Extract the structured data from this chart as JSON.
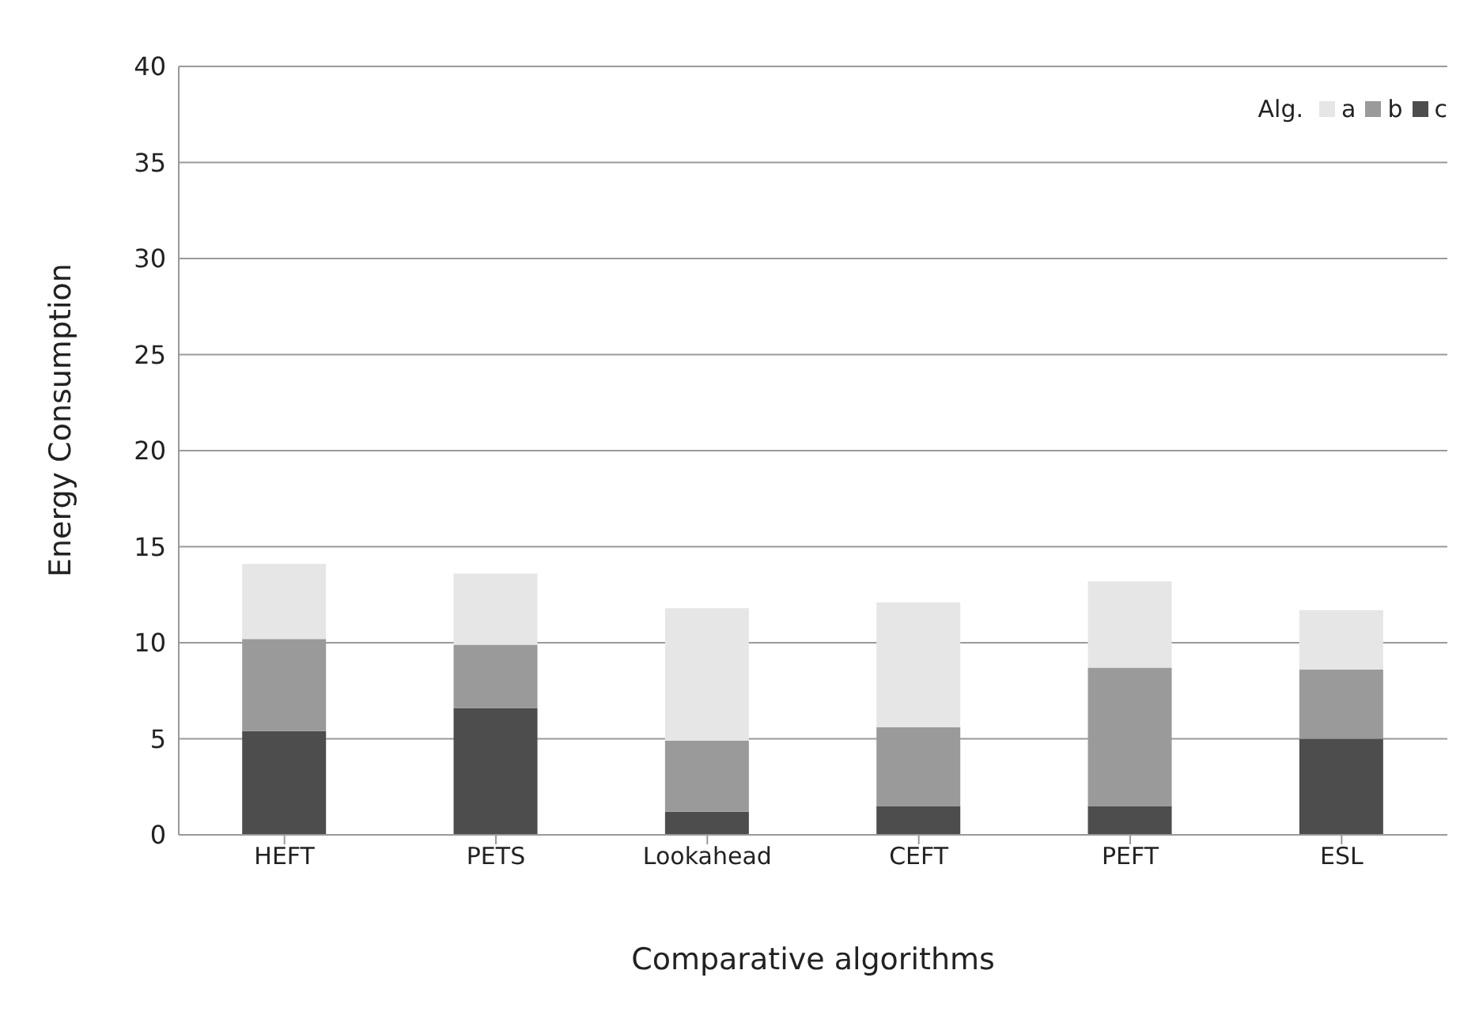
{
  "chart_data": {
    "type": "bar",
    "stacked": true,
    "xlabel": "Comparative algorithms",
    "ylabel": "Energy Consumption",
    "legend_title": "Alg.",
    "categories": [
      "HEFT",
      "PETS",
      "Lookahead",
      "CEFT",
      "PEFT",
      "ESL"
    ],
    "series": [
      {
        "name": "c",
        "color": "#4d4d4d",
        "values": [
          5.4,
          6.6,
          1.2,
          1.5,
          1.5,
          5.0
        ]
      },
      {
        "name": "b",
        "color": "#9a9a9a",
        "values": [
          4.8,
          3.3,
          3.7,
          4.1,
          7.2,
          3.6
        ]
      },
      {
        "name": "a",
        "color": "#e6e6e6",
        "values": [
          3.9,
          3.7,
          6.9,
          6.5,
          4.5,
          3.1
        ]
      }
    ],
    "ylim": [
      0,
      40
    ],
    "yticks": [
      0,
      5,
      10,
      15,
      20,
      25,
      30,
      35,
      40
    ],
    "grid": "y",
    "legend": "top right"
  }
}
